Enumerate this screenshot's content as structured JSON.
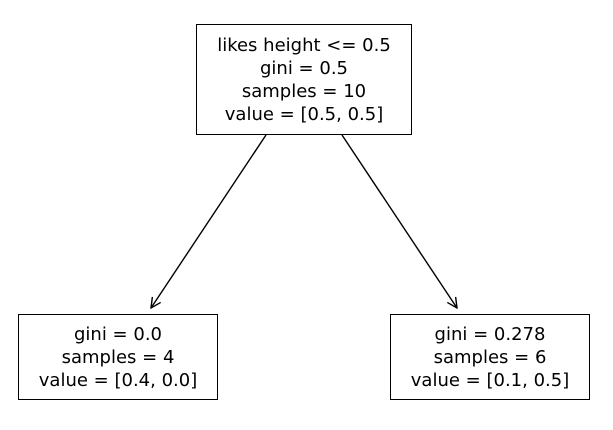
{
  "tree": {
    "root": {
      "lines": [
        "likes height <= 0.5",
        "gini = 0.5",
        "samples = 10",
        "value = [0.5, 0.5]"
      ]
    },
    "left": {
      "lines": [
        "gini = 0.0",
        "samples = 4",
        "value = [0.4, 0.0]"
      ]
    },
    "right": {
      "lines": [
        "gini = 0.278",
        "samples = 6",
        "value = [0.1, 0.5]"
      ]
    }
  },
  "colors": {
    "node_border": "#000000",
    "edge": "#000000",
    "text": "#000000",
    "background": "#ffffff"
  }
}
